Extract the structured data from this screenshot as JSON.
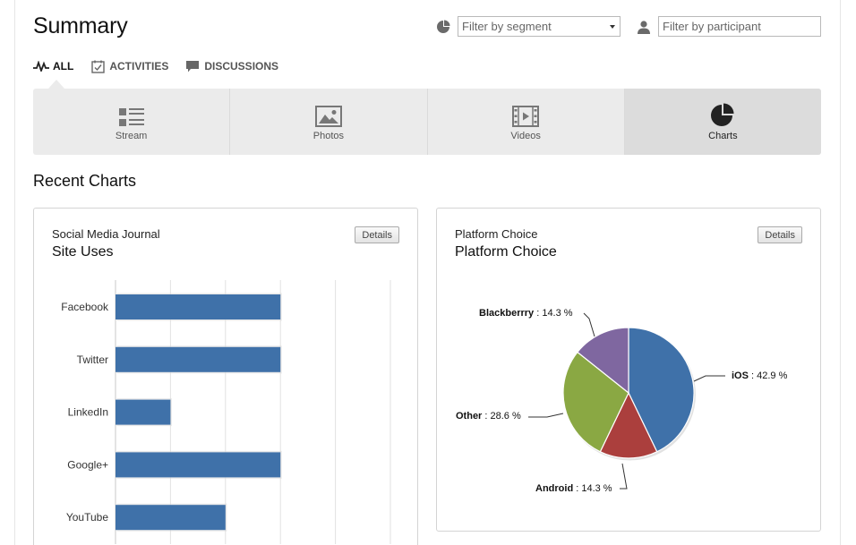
{
  "page": {
    "title": "Summary"
  },
  "filters": {
    "segment_placeholder": "Filter by segment",
    "participant_placeholder": "Filter by participant",
    "segment_icon": "pie-chart-icon",
    "participant_icon": "person-icon"
  },
  "subnav": [
    {
      "label": "ALL",
      "icon": "activity-pulse-icon",
      "active": true
    },
    {
      "label": "ACTIVITIES",
      "icon": "checkbox-calendar-icon",
      "active": false
    },
    {
      "label": "DISCUSSIONS",
      "icon": "speech-bubble-icon",
      "active": false
    }
  ],
  "tabs": [
    {
      "label": "Stream",
      "icon": "list-icon",
      "active": false
    },
    {
      "label": "Photos",
      "icon": "image-icon",
      "active": false
    },
    {
      "label": "Videos",
      "icon": "film-icon",
      "active": false
    },
    {
      "label": "Charts",
      "icon": "pie-chart-icon",
      "active": true
    }
  ],
  "section": {
    "title": "Recent Charts"
  },
  "cards": [
    {
      "subtitle": "Social Media Journal",
      "title": "Site Uses",
      "details_label": "Details"
    },
    {
      "subtitle": "Platform Choice",
      "title": "Platform Choice",
      "details_label": "Details"
    }
  ],
  "colors": {
    "bar": "#3f71a9",
    "ios": "#3f71a9",
    "android": "#ab3f3d",
    "other": "#8aa843",
    "blackberry": "#7f67a0"
  },
  "chart_data": [
    {
      "type": "bar",
      "orientation": "horizontal",
      "categories": [
        "Facebook",
        "Twitter",
        "LinkedIn",
        "Google+",
        "YouTube"
      ],
      "values": [
        3,
        3,
        1,
        3,
        2
      ],
      "xlim": [
        0,
        5
      ],
      "grid": true
    },
    {
      "type": "pie",
      "slices": [
        {
          "name": "iOS",
          "value": 42.9,
          "label": ": 42.9 %"
        },
        {
          "name": "Android",
          "value": 14.3,
          "label": ": 14.3 %"
        },
        {
          "name": "Other",
          "value": 28.6,
          "label": ": 28.6 %"
        },
        {
          "name": "Blackberrry",
          "value": 14.3,
          "label": ": 14.3 %"
        }
      ]
    }
  ]
}
